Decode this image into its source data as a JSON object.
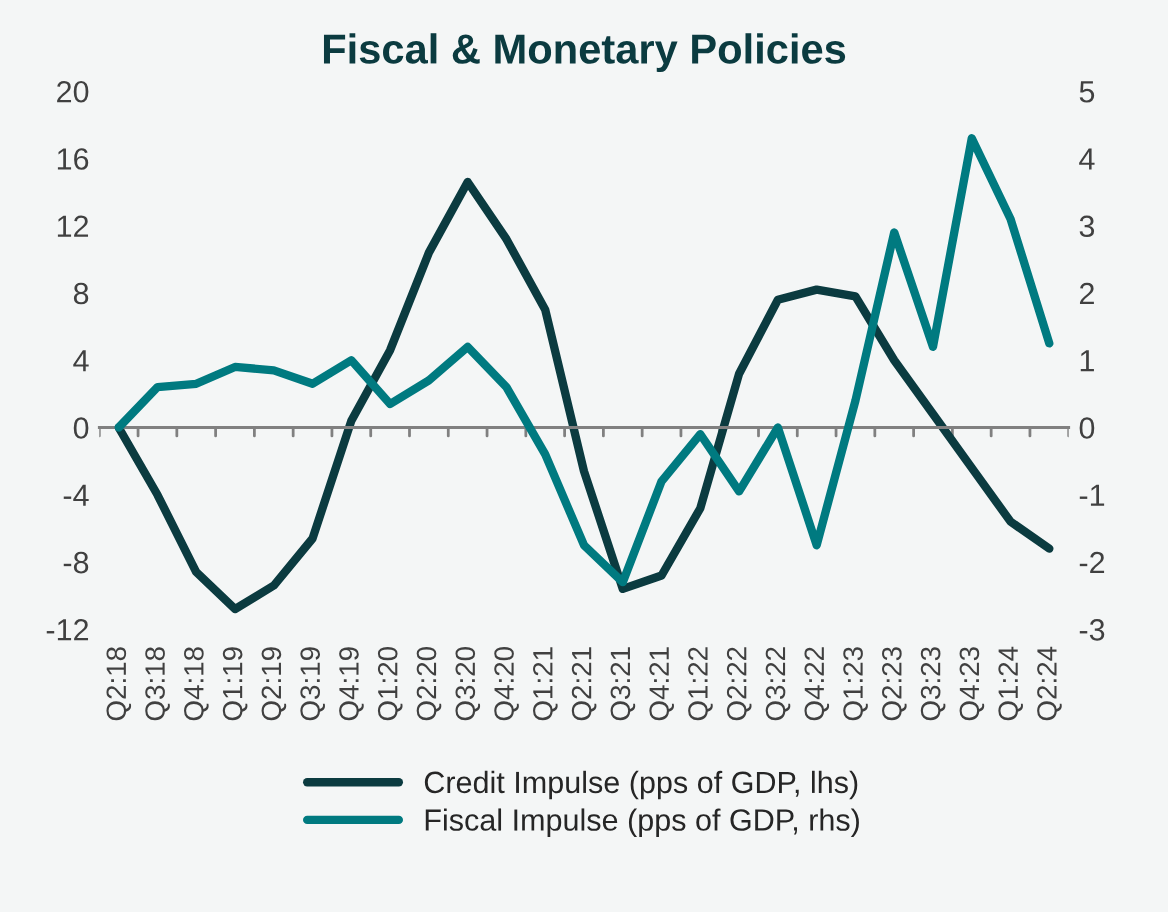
{
  "chart_data": {
    "type": "line",
    "title": "Fiscal & Monetary Policies",
    "categories": [
      "Q2:18",
      "Q3:18",
      "Q4:18",
      "Q1:19",
      "Q2:19",
      "Q3:19",
      "Q4:19",
      "Q1:20",
      "Q2:20",
      "Q3:20",
      "Q4:20",
      "Q1:21",
      "Q2:21",
      "Q3:21",
      "Q4:21",
      "Q1:22",
      "Q2:22",
      "Q3:22",
      "Q4:22",
      "Q1:23",
      "Q2:23",
      "Q3:23",
      "Q4:23",
      "Q1:24",
      "Q2:24"
    ],
    "series": [
      {
        "name": "Credit Impulse (pps of GDP, lhs)",
        "color": "#0b3b40",
        "values": [
          0,
          -4,
          -8.6,
          -10.8,
          -9.4,
          -6.6,
          0.4,
          4.6,
          10.4,
          14.6,
          11.2,
          7,
          -2.6,
          -9.6,
          -8.8,
          -4.8,
          3.2,
          7.6,
          8.2,
          7.8,
          4,
          0.8,
          -2.4,
          -5.6,
          -7.2
        ]
      },
      {
        "name": "Fiscal Impulse (pps of GDP, rhs)",
        "color": "#007a80",
        "axis": "y2",
        "values": [
          0,
          0.6,
          0.65,
          0.9,
          0.85,
          0.65,
          1.0,
          0.35,
          0.7,
          1.2,
          0.6,
          -0.4,
          -1.75,
          -2.3,
          -0.8,
          -0.1,
          -0.95,
          0,
          -1.75,
          0.4,
          2.9,
          1.2,
          4.3,
          3.1,
          1.25
        ]
      }
    ],
    "ylim": [
      -12,
      20
    ],
    "yticks": [
      -12,
      -8,
      -4,
      0,
      4,
      8,
      12,
      16,
      20
    ],
    "y2lim": [
      -3,
      5
    ],
    "y2ticks": [
      -3,
      -2,
      -1,
      0,
      1,
      2,
      3,
      4,
      5
    ],
    "legend": "bottom",
    "line_style": "solid",
    "marker": "none"
  }
}
